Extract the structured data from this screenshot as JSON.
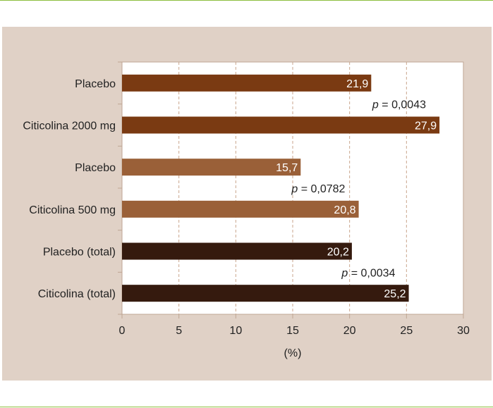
{
  "chart_data": {
    "type": "bar",
    "orientation": "horizontal",
    "categories": [
      "Placebo",
      "Citicolina 2000 mg",
      "Placebo",
      "Citicolina 500 mg",
      "Placebo (total)",
      "Citicolina (total)"
    ],
    "values": [
      21.9,
      27.9,
      15.7,
      20.8,
      20.2,
      25.2
    ],
    "value_labels": [
      "21,9",
      "27,9",
      "15,7",
      "20,8",
      "20,2",
      "25,2"
    ],
    "bar_colors": [
      "#7a3a12",
      "#7a3a12",
      "#9a6038",
      "#9a6038",
      "#351a0e",
      "#351a0e"
    ],
    "xlabel": "(%)",
    "xlim": [
      0,
      30
    ],
    "xticks": [
      "0",
      "5",
      "10",
      "15",
      "20",
      "25",
      "30"
    ],
    "grid": "vertical dashed",
    "annotations": [
      {
        "prefix": "p",
        "text": " = 0,0043"
      },
      {
        "prefix": "p",
        "text": " = 0,0782"
      },
      {
        "prefix": "p",
        "text": " = 0,0034"
      }
    ],
    "background": "#e0d1c6"
  }
}
